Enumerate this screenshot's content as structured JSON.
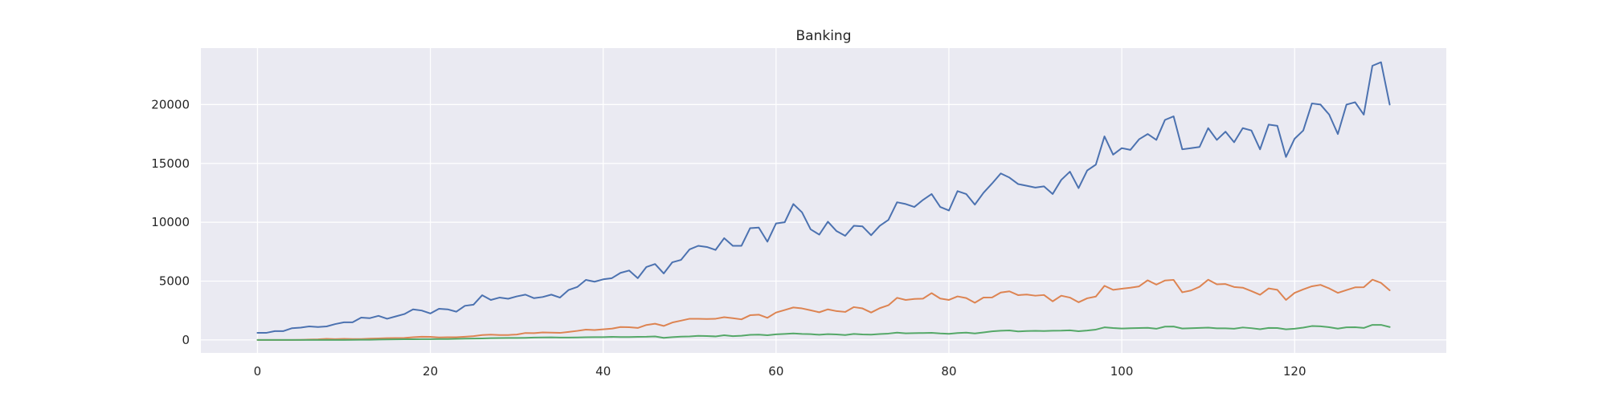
{
  "chart_data": {
    "type": "line",
    "title": "Banking",
    "xlabel": "",
    "ylabel": "",
    "xlim": [
      -6.55,
      137.55
    ],
    "ylim": [
      -1100,
      24800
    ],
    "xticks": [
      0,
      20,
      40,
      60,
      80,
      100,
      120
    ],
    "yticks": [
      0,
      5000,
      10000,
      15000,
      20000
    ],
    "grid": true,
    "legend": "none",
    "background": "#eaeaf2",
    "series": [
      {
        "color": "#4c72b0",
        "values": [
          600,
          600,
          750,
          750,
          1000,
          1050,
          1150,
          1100,
          1150,
          1350,
          1500,
          1500,
          1900,
          1850,
          2050,
          1800,
          2000,
          2200,
          2600,
          2500,
          2250,
          2650,
          2600,
          2400,
          2900,
          3000,
          3800,
          3400,
          3600,
          3500,
          3700,
          3850,
          3550,
          3650,
          3850,
          3600,
          4250,
          4500,
          5100,
          4950,
          5150,
          5250,
          5700,
          5900,
          5250,
          6200,
          6450,
          5650,
          6600,
          6800,
          7700,
          8000,
          7900,
          7650,
          8650,
          8000,
          8000,
          9500,
          9550,
          8350,
          9900,
          10000,
          11550,
          10850,
          9400,
          8950,
          10050,
          9250,
          8850,
          9700,
          9650,
          8900,
          9700,
          10200,
          11700,
          11550,
          11300,
          11900,
          12400,
          11300,
          11000,
          12650,
          12400,
          11500,
          12500,
          13300,
          14150,
          13800,
          13250,
          13100,
          12950,
          13050,
          12400,
          13600,
          14300,
          12900,
          14400,
          14900,
          17300,
          15750,
          16300,
          16150,
          17050,
          17500,
          17000,
          18700,
          19000,
          16200,
          16300,
          16400,
          18000,
          17000,
          17700,
          16800,
          18000,
          17800,
          16200,
          18300,
          18200,
          15550,
          17100,
          17800,
          20100,
          20000,
          19150,
          17500,
          20000,
          20200,
          19150,
          23300,
          23600,
          20000
        ]
      },
      {
        "color": "#dd8452",
        "values": [
          0,
          0,
          0,
          0,
          0,
          10,
          30,
          50,
          90,
          70,
          90,
          80,
          80,
          110,
          130,
          150,
          160,
          170,
          230,
          270,
          260,
          210,
          230,
          230,
          270,
          320,
          420,
          450,
          420,
          420,
          460,
          590,
          580,
          640,
          620,
          600,
          680,
          770,
          880,
          840,
          900,
          960,
          1100,
          1080,
          1020,
          1270,
          1380,
          1190,
          1480,
          1640,
          1800,
          1800,
          1780,
          1800,
          1930,
          1850,
          1750,
          2100,
          2150,
          1880,
          2330,
          2540,
          2760,
          2680,
          2520,
          2350,
          2600,
          2450,
          2380,
          2790,
          2680,
          2330,
          2700,
          2950,
          3580,
          3400,
          3480,
          3510,
          3980,
          3520,
          3400,
          3700,
          3560,
          3160,
          3600,
          3610,
          4030,
          4130,
          3810,
          3860,
          3760,
          3820,
          3280,
          3760,
          3600,
          3200,
          3540,
          3690,
          4600,
          4260,
          4350,
          4440,
          4550,
          5070,
          4700,
          5050,
          5100,
          4050,
          4200,
          4520,
          5120,
          4730,
          4750,
          4500,
          4440,
          4150,
          3840,
          4380,
          4260,
          3400,
          4000,
          4300,
          4560,
          4680,
          4380,
          4000,
          4240,
          4470,
          4480,
          5120,
          4850,
          4220
        ]
      },
      {
        "color": "#55a868",
        "values": [
          0,
          0,
          0,
          0,
          0,
          0,
          0,
          0,
          0,
          0,
          0,
          10,
          20,
          20,
          30,
          40,
          50,
          60,
          60,
          70,
          70,
          80,
          80,
          90,
          110,
          120,
          130,
          150,
          160,
          170,
          170,
          180,
          200,
          210,
          220,
          200,
          200,
          210,
          230,
          240,
          240,
          260,
          250,
          250,
          260,
          270,
          300,
          180,
          240,
          280,
          300,
          350,
          330,
          300,
          400,
          320,
          360,
          430,
          450,
          400,
          480,
          510,
          550,
          510,
          490,
          440,
          490,
          470,
          420,
          510,
          470,
          450,
          500,
          540,
          620,
          560,
          580,
          590,
          600,
          550,
          520,
          590,
          620,
          550,
          640,
          730,
          780,
          810,
          720,
          760,
          770,
          760,
          780,
          790,
          820,
          740,
          800,
          880,
          1070,
          1010,
          970,
          1000,
          1010,
          1030,
          950,
          1130,
          1140,
          970,
          1000,
          1020,
          1050,
          990,
          990,
          950,
          1060,
          1000,
          910,
          1020,
          1010,
          900,
          950,
          1050,
          1180,
          1160,
          1080,
          960,
          1070,
          1080,
          1020,
          1280,
          1280,
          1100
        ]
      }
    ]
  }
}
